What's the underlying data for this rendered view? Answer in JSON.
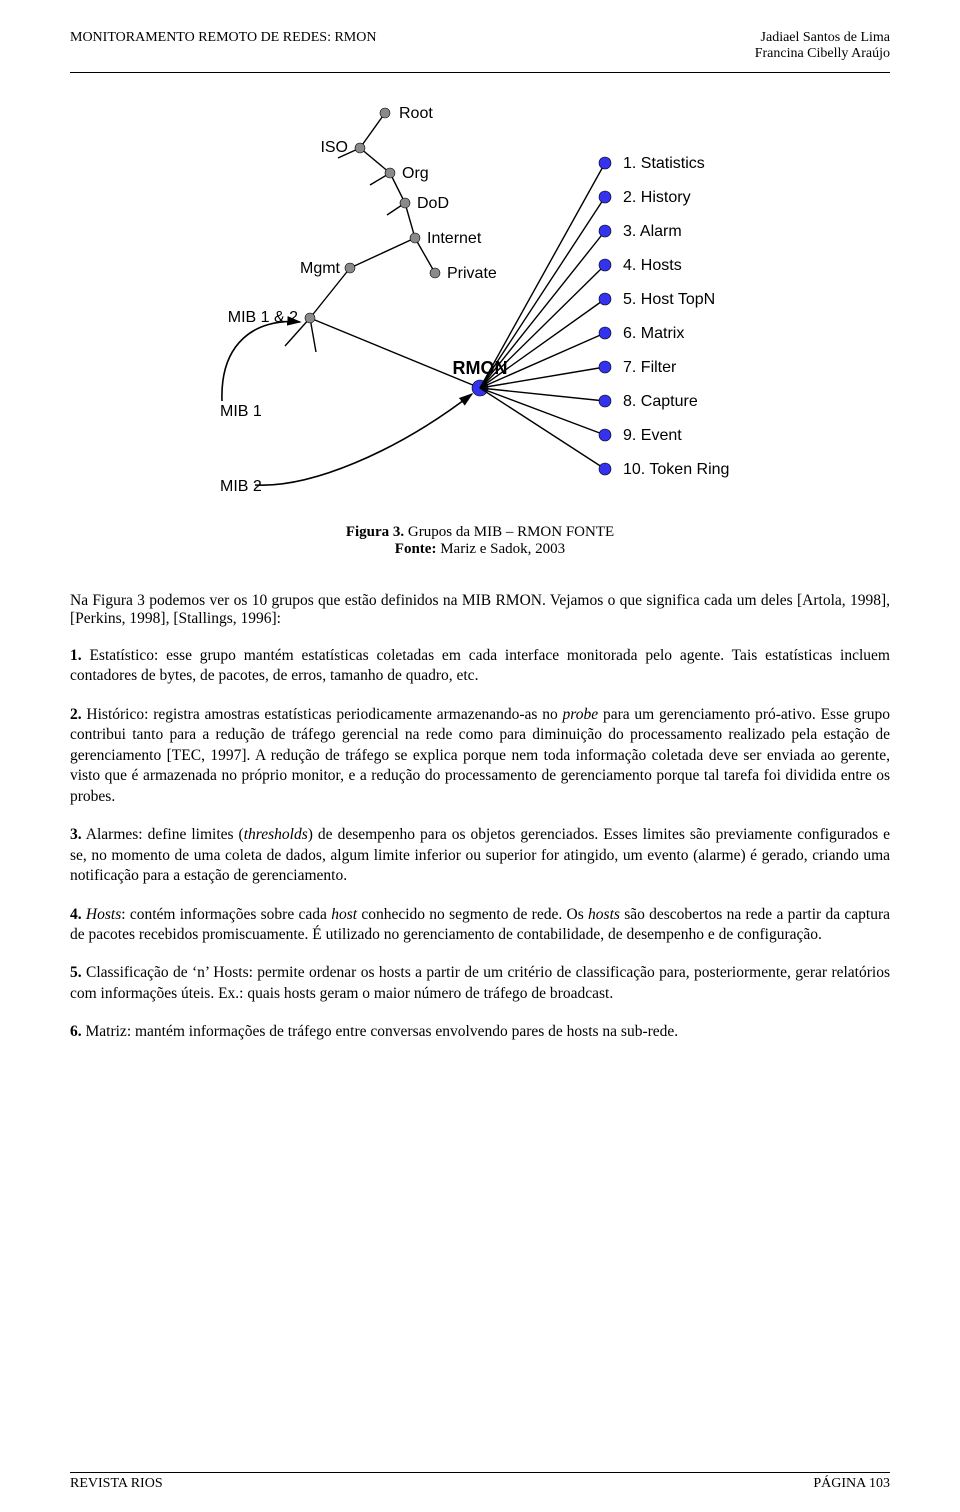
{
  "header": {
    "left": "MONITORAMENTO REMOTO DE REDES: RMON",
    "rightLine1": "Jadiael Santos de Lima",
    "rightLine2": "Francina Cibelly Araújo"
  },
  "figure": {
    "captionLine1Bold": "Figura 3.",
    "captionLine1Rest": " Grupos da MIB – RMON FONTE",
    "captionLine2Bold": "Fonte: ",
    "captionLine2Rest": "Mariz e Sadok, 2003",
    "treeLabels": {
      "root": "Root",
      "iso": "ISO",
      "org": "Org",
      "dod": "DoD",
      "internet": "Internet",
      "mgmt": "Mgmt",
      "private": "Private",
      "mib12": "MIB 1 & 2",
      "rmon": "RMON",
      "mib1": "MIB 1",
      "mib2": "MIB 2"
    },
    "rmonGroups": [
      "1.  Statistics",
      "2.  History",
      "3.  Alarm",
      "4.  Hosts",
      "5.  Host TopN",
      "6.  Matrix",
      "7.  Filter",
      "8.  Capture",
      "9.  Event",
      "10. Token Ring"
    ],
    "colors": {
      "nodeBlue": "#3333ee",
      "nodeGrey": "#8a8a8a",
      "line": "#000000",
      "text": "#000000",
      "arrow": "#000000"
    },
    "style": {
      "leafRadius": 6,
      "greyRadius": 5,
      "fontSize": 16,
      "labelFontSize": 16,
      "rmonFontSize": 18,
      "rmonFontWeight": "bold"
    }
  },
  "intro": "Na Figura 3 podemos ver os 10 grupos que estão definidos na MIB RMON. Vejamos o que significa cada um deles [Artola, 1998], [Perkins, 1998], [Stallings, 1996]:",
  "items": [
    {
      "num": "1.",
      "html": " Estatístico: esse grupo mantém estatísticas coletadas em cada interface monitorada pelo agente. Tais estatísticas incluem contadores de bytes, de pacotes, de erros, tamanho de quadro, etc."
    },
    {
      "num": "2.",
      "html": " Histórico: registra amostras estatísticas periodicamente armazenando-as no <em>probe</em> para um gerenciamento pró-ativo. Esse grupo contribui tanto para a redução de tráfego gerencial na rede como para diminuição do processamento realizado pela estação de gerenciamento [TEC, 1997]. A redução de tráfego se explica porque nem toda informação coletada deve ser enviada ao gerente, visto que é armazenada no próprio monitor, e a redução do processamento de gerenciamento porque tal tarefa foi dividida entre os probes."
    },
    {
      "num": "3.",
      "html": " Alarmes: define limites (<em>thresholds</em>) de desempenho para os objetos gerenciados.  Esses limites são previamente configurados e se, no momento de uma coleta de dados, algum limite inferior ou superior for atingido, um evento (alarme) é gerado, criando uma notificação para a estação de gerenciamento."
    },
    {
      "num": "4.",
      "html": " <em>Hosts</em>: contém informações sobre cada <em>host</em> conhecido no segmento de rede. Os <em>hosts</em> são descobertos na rede a partir da captura de pacotes recebidos promiscuamente. É utilizado no gerenciamento de contabilidade, de desempenho e de configuração."
    },
    {
      "num": "5.",
      "html": " Classificação de ‘n’ Hosts: permite ordenar os hosts a partir de um critério de classificação para, posteriormente, gerar relatórios com informações úteis. Ex.: quais hosts geram o maior número de tráfego de broadcast."
    },
    {
      "num": "6.",
      "html": " Matriz: mantém informações de tráfego entre conversas envolvendo pares de hosts na sub-rede."
    }
  ],
  "footer": {
    "left": "REVISTA RIOS",
    "right": "PÁGINA 103"
  }
}
